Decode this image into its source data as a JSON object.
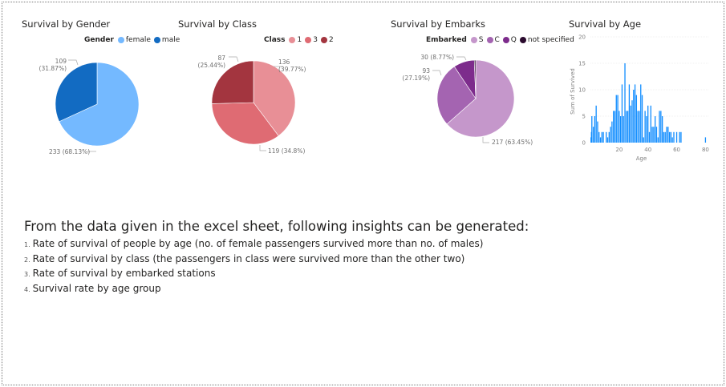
{
  "insights": {
    "heading": "From the data given in the excel sheet, following insights can be generated:",
    "items": [
      {
        "num": "1.",
        "text": "Rate of survival of people by age (no. of female passengers survived more than no. of males)"
      },
      {
        "num": "2.",
        "text": "Rate of survival by class (the passengers in class were survived more than the other two)"
      },
      {
        "num": "3.",
        "text": "Rate of survival by embarked stations"
      },
      {
        "num": "4.",
        "text": "Survival rate by age group"
      }
    ]
  },
  "chart_data": [
    {
      "type": "pie",
      "title": "Survival by Gender",
      "legend_title": "Gender",
      "legend_position": "top",
      "slices": [
        {
          "label": "female",
          "value": 233,
          "data_label": "233 (68.13%)",
          "color": "#74B9FF"
        },
        {
          "label": "male",
          "value": 109,
          "data_label": "109 (31.87%)",
          "color": "#126BC2"
        }
      ]
    },
    {
      "type": "pie",
      "title": "Survival by Class",
      "legend_title": "Class",
      "legend_position": "top",
      "slices": [
        {
          "label": "1",
          "value": 136,
          "data_label": "136 (39.77%)",
          "color": "#E88F96"
        },
        {
          "label": "3",
          "value": 119,
          "data_label": "119 (34.8%)",
          "color": "#DF6B73"
        },
        {
          "label": "2",
          "value": 87,
          "data_label": "87 (25.44%)",
          "color": "#A3353F"
        }
      ]
    },
    {
      "type": "pie",
      "title": "Survival by Embarks",
      "legend_title": "Embarked",
      "legend_position": "top",
      "slices": [
        {
          "label": "S",
          "value": 217,
          "data_label": "217 (63.45%)",
          "color": "#C597CB"
        },
        {
          "label": "C",
          "value": 93,
          "data_label": "93 (27.19%)",
          "color": "#A464B1"
        },
        {
          "label": "Q",
          "value": 30,
          "data_label": "30 (8.77%)",
          "color": "#7D2C8C"
        },
        {
          "label": "not specified",
          "value": 2,
          "data_label": "",
          "color": "#2B0B2E"
        }
      ]
    },
    {
      "type": "bar",
      "title": "Survival by Age",
      "xlabel": "Age",
      "ylabel": "Sum of Survived",
      "ylim": [
        0,
        20
      ],
      "yticks": [
        0,
        5,
        10,
        15,
        20
      ],
      "xticks": [
        20,
        40,
        60,
        80
      ],
      "grid": true,
      "color": "#118DFF",
      "x": [
        0.42,
        0.67,
        0.75,
        0.83,
        0.92,
        1,
        2,
        3,
        4,
        5,
        6,
        7,
        8,
        9,
        10,
        11,
        12,
        13,
        14,
        15,
        16,
        17,
        18,
        19,
        20,
        21,
        22,
        23,
        24,
        25,
        26,
        27,
        28,
        29,
        30,
        31,
        32,
        33,
        34,
        35,
        36,
        37,
        38,
        39,
        40,
        41,
        42,
        43,
        44,
        45,
        46,
        47,
        48,
        49,
        50,
        51,
        52,
        53,
        54,
        55,
        56,
        57,
        58,
        59,
        60,
        61,
        62,
        63,
        64,
        65,
        66,
        70,
        71,
        74,
        80
      ],
      "values": [
        1,
        1,
        2,
        2,
        1,
        5,
        3,
        5,
        7,
        4,
        2,
        1,
        2,
        2,
        0,
        2,
        1,
        2,
        3,
        4,
        6,
        6,
        9,
        9,
        6,
        5,
        11,
        5,
        15,
        6,
        6,
        11,
        7,
        8,
        10,
        11,
        9,
        6,
        6,
        11,
        9,
        1,
        6,
        5,
        7,
        2,
        7,
        3,
        3,
        5,
        3,
        1,
        6,
        6,
        5,
        2,
        2,
        3,
        3,
        2,
        2,
        1,
        2,
        0,
        2,
        0,
        2,
        2,
        0,
        0,
        0,
        0,
        0,
        0,
        1
      ]
    }
  ]
}
